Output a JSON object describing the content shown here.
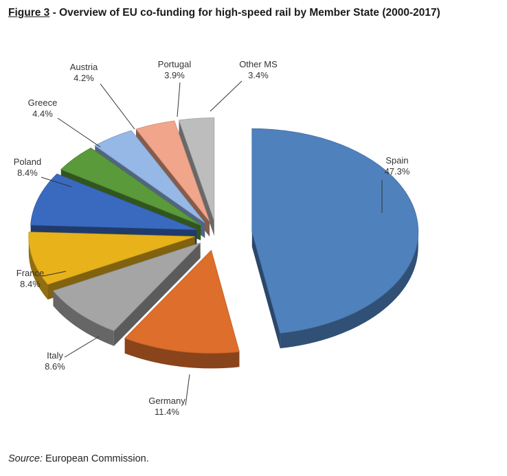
{
  "figure": {
    "number": "Figure 3",
    "separator": " - ",
    "title": "Overview of EU co-funding for high-speed rail by Member State (2000-2017)"
  },
  "source": {
    "label": "Source:",
    "text": " European Commission."
  },
  "chart_data": {
    "type": "pie",
    "style": "3d-exploded",
    "title": "Overview of EU co-funding for high-speed rail by Member State (2000-2017)",
    "unit": "%",
    "categories": [
      "Spain",
      "Germany",
      "Italy",
      "France",
      "Poland",
      "Greece",
      "Austria",
      "Portugal",
      "Other MS"
    ],
    "values": [
      47.3,
      11.4,
      8.6,
      8.4,
      8.4,
      4.4,
      4.2,
      3.9,
      3.4
    ],
    "labels": [
      "47.3%",
      "11.4%",
      "8.6%",
      "8.4%",
      "8.4%",
      "4.4%",
      "4.2%",
      "3.9%",
      "3.4%"
    ],
    "colors": [
      "#4F81BD",
      "#DD6E2B",
      "#A5A5A5",
      "#E8B21B",
      "#3A6AC0",
      "#5A9A3A",
      "#95B8E6",
      "#F1A58A",
      "#BDBDBD"
    ],
    "legend": "none",
    "data_labels": "outside-with-leader-lines"
  }
}
